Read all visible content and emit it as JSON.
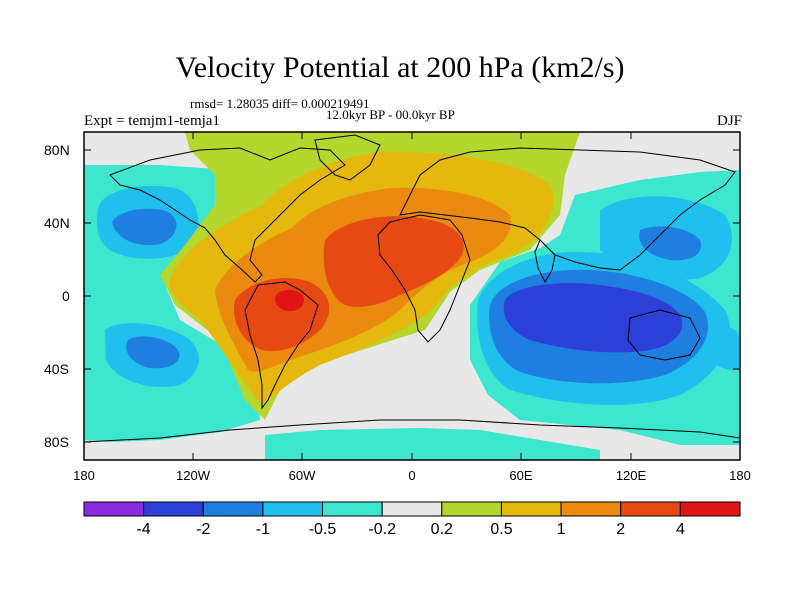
{
  "title": "Velocity Potential at 200 hPa (km2/s)",
  "stats": "rmsd= 1.28035 diff= 0.000219491",
  "period": "12.0kyr BP - 00.0kyr BP",
  "experiment": "Expt = temjm1-temja1",
  "season": "DJF",
  "axes": {
    "y_ticks": [
      "80N",
      "40N",
      "0",
      "40S",
      "80S"
    ],
    "x_ticks": [
      "180",
      "120W",
      "60W",
      "0",
      "60E",
      "120E",
      "180"
    ]
  },
  "colorbar": {
    "labels": [
      "-4",
      "-2",
      "-1",
      "-0.5",
      "-0.2",
      "0.2",
      "0.5",
      "1",
      "2",
      "4"
    ],
    "colors": [
      "#8a2be2",
      "#2c3fd6",
      "#1f7fe0",
      "#1fc0ee",
      "#3ce6cf",
      "#e8e8e8",
      "#b5d62c",
      "#e4b80c",
      "#ea8a0f",
      "#e64a12",
      "#e01414"
    ]
  }
}
